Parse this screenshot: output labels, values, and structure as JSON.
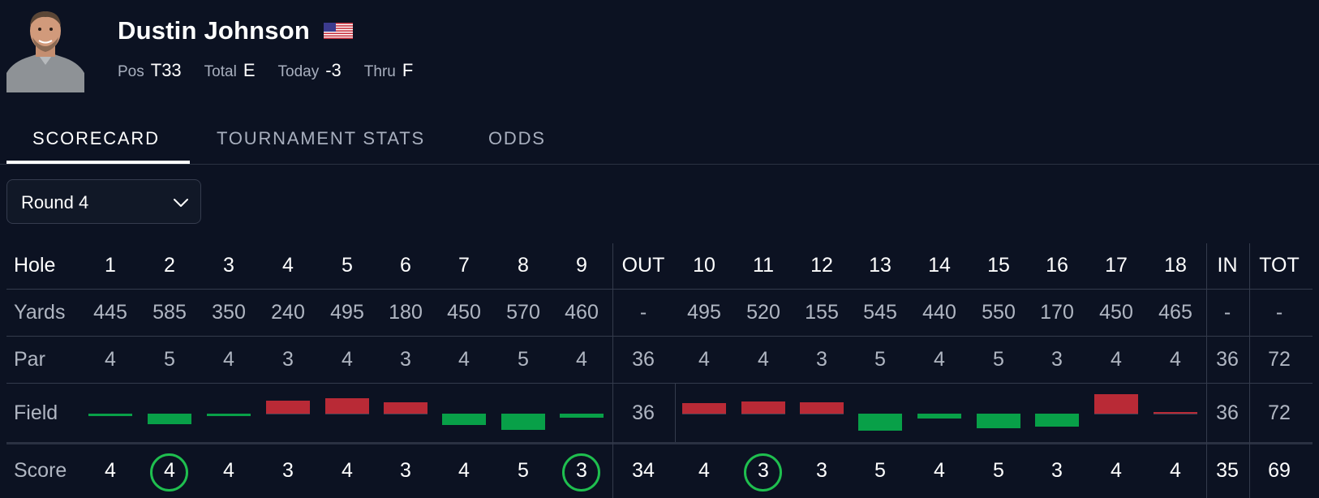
{
  "player": {
    "name": "Dustin Johnson",
    "flag_icon": "us-flag-icon",
    "avatar_icon": "player-headshot",
    "stats": [
      {
        "label": "Pos",
        "value": "T33"
      },
      {
        "label": "Total",
        "value": "E"
      },
      {
        "label": "Today",
        "value": "-3"
      },
      {
        "label": "Thru",
        "value": "F"
      }
    ]
  },
  "tabs": [
    {
      "label": "SCORECARD",
      "active": true
    },
    {
      "label": "TOURNAMENT STATS",
      "active": false
    },
    {
      "label": "ODDS",
      "active": false
    }
  ],
  "round_select": {
    "value": "Round 4",
    "icon": "chevron-down-icon"
  },
  "scorecard": {
    "row_labels": {
      "hole": "Hole",
      "yards": "Yards",
      "par": "Par",
      "field": "Field",
      "score": "Score"
    },
    "columns": [
      {
        "hole": "1",
        "yards": "445",
        "par": "4",
        "field_diff": -0.05,
        "score": "4",
        "circled": false
      },
      {
        "hole": "2",
        "yards": "585",
        "par": "5",
        "field_diff": -0.2,
        "score": "4",
        "circled": true
      },
      {
        "hole": "3",
        "yards": "350",
        "par": "4",
        "field_diff": -0.04,
        "score": "4",
        "circled": false
      },
      {
        "hole": "4",
        "yards": "240",
        "par": "3",
        "field_diff": 0.25,
        "score": "3",
        "circled": false
      },
      {
        "hole": "5",
        "yards": "495",
        "par": "4",
        "field_diff": 0.3,
        "score": "4",
        "circled": false
      },
      {
        "hole": "6",
        "yards": "180",
        "par": "3",
        "field_diff": 0.21,
        "score": "3",
        "circled": false
      },
      {
        "hole": "7",
        "yards": "450",
        "par": "4",
        "field_diff": -0.22,
        "score": "4",
        "circled": false
      },
      {
        "hole": "8",
        "yards": "570",
        "par": "5",
        "field_diff": -0.3,
        "score": "5",
        "circled": false
      },
      {
        "hole": "9",
        "yards": "460",
        "par": "4",
        "field_diff": -0.07,
        "score": "3",
        "circled": true
      },
      {
        "hole": "OUT",
        "yards": "-",
        "par": "36",
        "field_text": "36",
        "score": "34",
        "circled": false,
        "summary": true
      },
      {
        "hole": "10",
        "yards": "495",
        "par": "4",
        "field_diff": 0.2,
        "score": "4",
        "circled": false
      },
      {
        "hole": "11",
        "yards": "520",
        "par": "4",
        "field_diff": 0.23,
        "score": "3",
        "circled": true
      },
      {
        "hole": "12",
        "yards": "155",
        "par": "3",
        "field_diff": 0.22,
        "score": "3",
        "circled": false
      },
      {
        "hole": "13",
        "yards": "545",
        "par": "5",
        "field_diff": -0.32,
        "score": "5",
        "circled": false
      },
      {
        "hole": "14",
        "yards": "440",
        "par": "4",
        "field_diff": -0.09,
        "score": "4",
        "circled": false
      },
      {
        "hole": "15",
        "yards": "550",
        "par": "5",
        "field_diff": -0.28,
        "score": "5",
        "circled": false
      },
      {
        "hole": "16",
        "yards": "170",
        "par": "3",
        "field_diff": -0.24,
        "score": "3",
        "circled": false
      },
      {
        "hole": "17",
        "yards": "450",
        "par": "4",
        "field_diff": 0.37,
        "score": "4",
        "circled": false
      },
      {
        "hole": "18",
        "yards": "465",
        "par": "4",
        "field_diff": 0.02,
        "score": "4",
        "circled": false
      },
      {
        "hole": "IN",
        "yards": "-",
        "par": "36",
        "field_text": "36",
        "score": "35",
        "circled": false,
        "summary": true
      },
      {
        "hole": "TOT",
        "yards": "-",
        "par": "72",
        "field_text": "72",
        "score": "69",
        "circled": false,
        "summary": true
      }
    ],
    "colors": {
      "over_par": "#b92a36",
      "under_par": "#08a048",
      "birdie_circle": "#1fbf4f"
    }
  }
}
